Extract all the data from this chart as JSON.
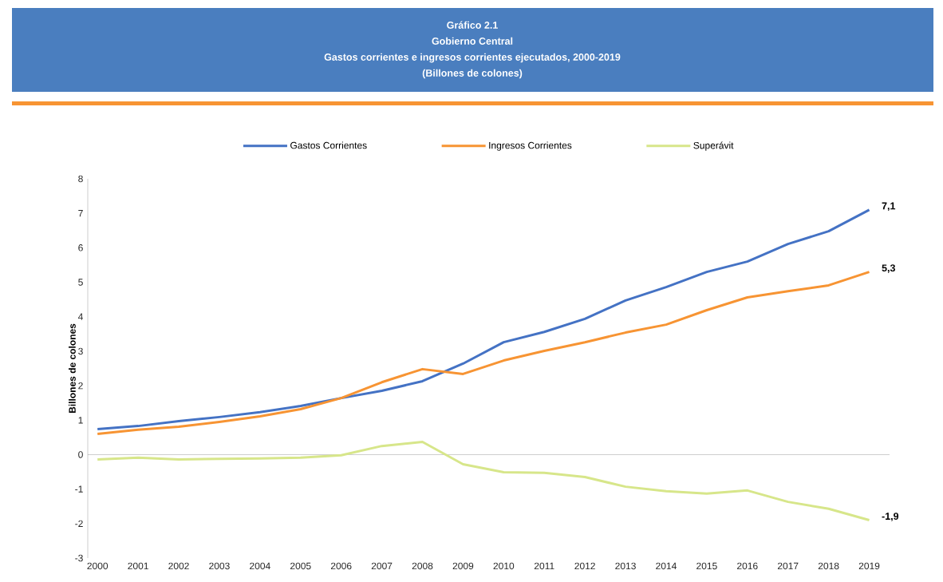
{
  "chart_data": {
    "type": "line",
    "title": "Gastos corrientes e ingresos corrientes ejecutados, 2000-2019",
    "subtitle": "(Billones de colones)",
    "annotations": [
      "Gráfico 2.1",
      "Gobierno Central"
    ],
    "ylabel": "Billones de colones",
    "categories": [
      "2000",
      "2001",
      "2002",
      "2003",
      "2004",
      "2005",
      "2006",
      "2007",
      "2008",
      "2009",
      "2010",
      "2011",
      "2012",
      "2013",
      "2014",
      "2015",
      "2016",
      "2017",
      "2018",
      "2019"
    ],
    "ylim": [
      -3,
      8
    ],
    "yticks": [
      -3,
      -2,
      -1,
      0,
      1,
      2,
      3,
      4,
      5,
      6,
      7,
      8
    ],
    "legend": "top",
    "series": [
      {
        "name": "Gastos Corrientes",
        "color": "#4472c4",
        "values": [
          0.74,
          0.83,
          0.97,
          1.09,
          1.23,
          1.41,
          1.64,
          1.85,
          2.13,
          2.64,
          3.26,
          3.56,
          3.94,
          4.47,
          4.86,
          5.3,
          5.6,
          6.11,
          6.48,
          7.1
        ],
        "value_labels": [
          null,
          null,
          null,
          null,
          null,
          null,
          null,
          null,
          null,
          null,
          null,
          null,
          null,
          null,
          null,
          null,
          null,
          null,
          null,
          "7,1"
        ]
      },
      {
        "name": "Ingresos Corrientes",
        "color": "#f79433",
        "values": [
          0.6,
          0.72,
          0.81,
          0.95,
          1.11,
          1.32,
          1.64,
          2.1,
          2.48,
          2.34,
          2.73,
          3.01,
          3.26,
          3.54,
          3.77,
          4.19,
          4.56,
          4.74,
          4.91,
          5.3
        ],
        "value_labels": [
          null,
          null,
          null,
          null,
          null,
          null,
          null,
          null,
          null,
          null,
          null,
          null,
          null,
          null,
          null,
          null,
          null,
          null,
          null,
          "5,3"
        ]
      },
      {
        "name": "Superávit",
        "color": "#d7e68a",
        "values": [
          -0.14,
          -0.09,
          -0.14,
          -0.12,
          -0.11,
          -0.09,
          -0.02,
          0.25,
          0.37,
          -0.28,
          -0.51,
          -0.53,
          -0.65,
          -0.93,
          -1.06,
          -1.13,
          -1.04,
          -1.37,
          -1.57,
          -1.9
        ],
        "value_labels": [
          null,
          null,
          null,
          null,
          null,
          null,
          null,
          null,
          null,
          null,
          null,
          null,
          null,
          null,
          null,
          null,
          null,
          null,
          null,
          "-1,9"
        ]
      }
    ]
  }
}
